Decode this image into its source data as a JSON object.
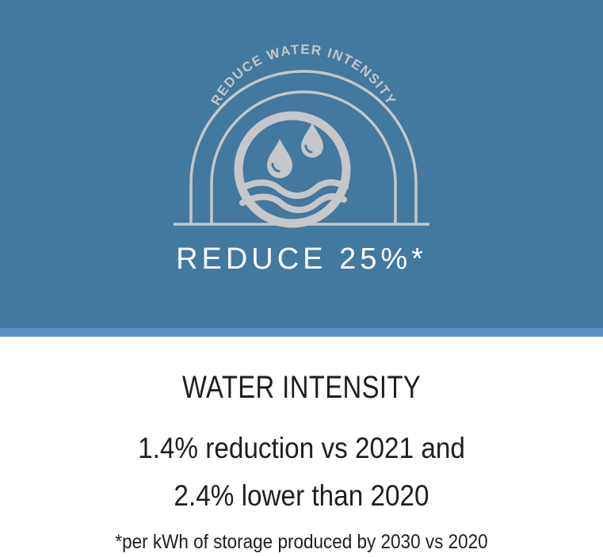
{
  "colors": {
    "banner": "#43789f",
    "banner_strip": "#5b8fc2",
    "icon": "#c5c7c9",
    "target_text": "#ffffff",
    "body_text": "#1f1f1f"
  },
  "badge": {
    "arc_text": "REDUCE WATER INTENSITY",
    "icon": "water-droplets-waves-icon"
  },
  "target": {
    "label": "REDUCE 25%*"
  },
  "info": {
    "title": "WATER INTENSITY",
    "line1": "1.4% reduction vs 2021 and",
    "line2": "2.4% lower than 2020",
    "footnote": "*per kWh of storage produced by 2030 vs 2020"
  }
}
